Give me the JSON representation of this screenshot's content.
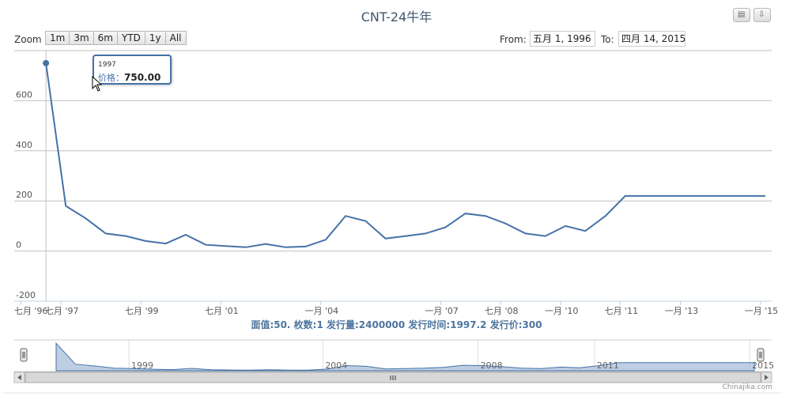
{
  "toolbar": {
    "zoom_label": "Zoom",
    "ranges": [
      "1m",
      "3m",
      "6m",
      "YTD",
      "1y",
      "All"
    ],
    "from_label": "From:",
    "from_value": "五月 1, 1996",
    "to_label": "To:",
    "to_value": "四月 14, 2015"
  },
  "export": {
    "print_icon": "print-icon",
    "download_icon": "download-icon"
  },
  "tooltip": {
    "year": "1997",
    "label": "价格：",
    "value": "750.00"
  },
  "caption": "面值:50. 枚数:1 发行量:2400000 发行时间:1997.2 发行价:300",
  "credit": "Chinajika.com",
  "colors": {
    "series": "#4572a7",
    "navigator_fill": "#a8bfd9",
    "grid": "#c0c0c0"
  },
  "navigator": {
    "labels": [
      "1999",
      "2004",
      "2008",
      "2011",
      "2015"
    ]
  },
  "chart_data": {
    "type": "line",
    "title": "CNT-24牛年",
    "xlabel": "",
    "ylabel": "",
    "ylim": [
      -200,
      800
    ],
    "yticks": [
      -200,
      0,
      200,
      400,
      600
    ],
    "grid": true,
    "xtick_labels": [
      "七月 '96",
      "七月 '97",
      "七月 '99",
      "七月 '01",
      "一月 '04",
      "一月 '07",
      "七月 '08",
      "一月 '10",
      "七月 '11",
      "一月 '13",
      "一月 '15"
    ],
    "series": [
      {
        "x": [
          "1997-02",
          "1997-08",
          "1998-02",
          "1998-08",
          "1999-02",
          "1999-08",
          "2000-02",
          "2000-08",
          "2001-02",
          "2001-08",
          "2002-02",
          "2002-08",
          "2003-02",
          "2003-08",
          "2004-02",
          "2004-08",
          "2005-02",
          "2005-08",
          "2006-02",
          "2006-08",
          "2007-02",
          "2007-08",
          "2008-02",
          "2008-08",
          "2009-02",
          "2009-08",
          "2010-02",
          "2010-08",
          "2011-02",
          "2011-08",
          "2012-02",
          "2012-08",
          "2013-02",
          "2013-08",
          "2014-02",
          "2014-08",
          "2015-02"
        ],
        "values": [
          750,
          180,
          130,
          70,
          60,
          40,
          30,
          65,
          25,
          20,
          15,
          28,
          15,
          18,
          45,
          140,
          120,
          50,
          60,
          70,
          95,
          150,
          140,
          110,
          70,
          60,
          100,
          80,
          140,
          220,
          220,
          220,
          220,
          220,
          220,
          220,
          220
        ]
      }
    ]
  }
}
